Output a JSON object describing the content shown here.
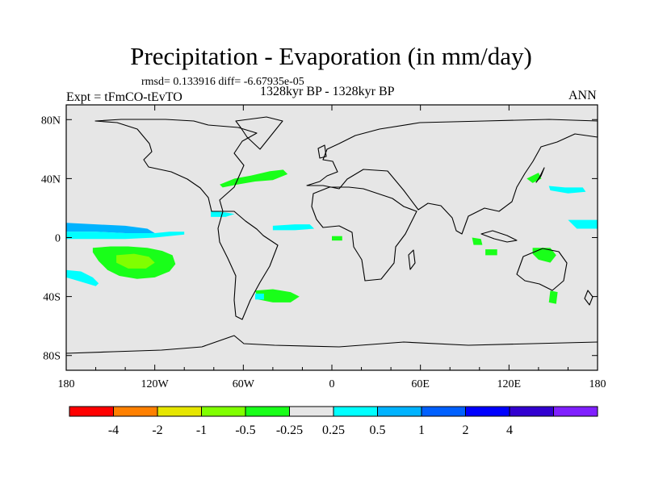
{
  "header": {
    "title": "Precipitation - Evaporation (in mm/day)",
    "stats": "rmsd= 0.133916 diff= -6.67935e-05",
    "experiment": "Expt = tFmCO-tEvTO",
    "period": "1328kyr BP - 1328kyr BP",
    "season": "ANN"
  },
  "chart_data": {
    "type": "heatmap",
    "title": "Precipitation - Evaporation (in mm/day)",
    "subtitle": "rmsd= 0.133916 diff= -6.67935e-05",
    "xlabel": "",
    "ylabel": "",
    "xlim": [
      -180,
      180
    ],
    "ylim": [
      -90,
      90
    ],
    "x_ticks": [
      {
        "value": -180,
        "label": "180"
      },
      {
        "value": -120,
        "label": "120W"
      },
      {
        "value": -60,
        "label": "60W"
      },
      {
        "value": 0,
        "label": "0"
      },
      {
        "value": 60,
        "label": "60E"
      },
      {
        "value": 120,
        "label": "120E"
      },
      {
        "value": 180,
        "label": "180"
      }
    ],
    "y_ticks": [
      {
        "value": 80,
        "label": "80N"
      },
      {
        "value": 40,
        "label": "40N"
      },
      {
        "value": 0,
        "label": "0"
      },
      {
        "value": -40,
        "label": "40S"
      },
      {
        "value": -80,
        "label": "80S"
      }
    ],
    "colorbar": {
      "colors": [
        "#ff0000",
        "#ff8000",
        "#e6e600",
        "#80ff00",
        "#19ff19",
        "#e6e6e6",
        "#00ffff",
        "#00b3ff",
        "#0060ff",
        "#0000ff",
        "#3200d0",
        "#8020ff"
      ],
      "labels": [
        "-4",
        "-2",
        "-1",
        "-0.5",
        "-0.25",
        "0.25",
        "0.5",
        "1",
        "2",
        "4"
      ],
      "background": "#e6e6e6"
    },
    "regions": [
      {
        "name": "north-atlantic-anomaly",
        "class": "-0.5..-0.25",
        "color": "#19ff19",
        "points": [
          [
            -76,
            36
          ],
          [
            -66,
            40
          ],
          [
            -55,
            42
          ],
          [
            -42,
            45
          ],
          [
            -33,
            46
          ],
          [
            -30,
            43
          ],
          [
            -40,
            39
          ],
          [
            -52,
            38
          ],
          [
            -64,
            36
          ],
          [
            -74,
            34
          ]
        ]
      },
      {
        "name": "south-pacific-anomaly",
        "class": "-0.5..-0.25",
        "color": "#19ff19",
        "points": [
          [
            -162,
            -7
          ],
          [
            -150,
            -6
          ],
          [
            -138,
            -6
          ],
          [
            -125,
            -7
          ],
          [
            -115,
            -9
          ],
          [
            -108,
            -12
          ],
          [
            -106,
            -18
          ],
          [
            -110,
            -23
          ],
          [
            -120,
            -27
          ],
          [
            -132,
            -28
          ],
          [
            -144,
            -26
          ],
          [
            -152,
            -22
          ],
          [
            -158,
            -16
          ],
          [
            -162,
            -10
          ]
        ]
      },
      {
        "name": "south-pacific-core",
        "class": "-1..-0.5",
        "color": "#80ff00",
        "points": [
          [
            -146,
            -12
          ],
          [
            -134,
            -11
          ],
          [
            -124,
            -13
          ],
          [
            -120,
            -17
          ],
          [
            -126,
            -21
          ],
          [
            -138,
            -21
          ],
          [
            -146,
            -17
          ]
        ]
      },
      {
        "name": "equatorial-pacific-positive",
        "class": "0.5..1",
        "color": "#00b3ff",
        "points": [
          [
            -180,
            10
          ],
          [
            -160,
            9
          ],
          [
            -140,
            8
          ],
          [
            -125,
            6
          ],
          [
            -120,
            3
          ],
          [
            -140,
            3
          ],
          [
            -160,
            4
          ],
          [
            -180,
            4
          ]
        ]
      },
      {
        "name": "equatorial-pacific-positive-band",
        "class": "0.25..0.5",
        "color": "#00ffff",
        "points": [
          [
            -180,
            4
          ],
          [
            -160,
            4
          ],
          [
            -140,
            3
          ],
          [
            -120,
            3
          ],
          [
            -110,
            4
          ],
          [
            -100,
            4
          ],
          [
            -100,
            2
          ],
          [
            -120,
            0
          ],
          [
            -140,
            -1
          ],
          [
            -160,
            -1
          ],
          [
            -180,
            -1
          ]
        ]
      },
      {
        "name": "atlantic-itcz-positive",
        "class": "0.25..0.5",
        "color": "#00ffff",
        "points": [
          [
            -40,
            8
          ],
          [
            -25,
            9
          ],
          [
            -15,
            9
          ],
          [
            -12,
            6
          ],
          [
            -25,
            5
          ],
          [
            -40,
            5
          ]
        ]
      },
      {
        "name": "south-pacific-positive",
        "class": "0.25..0.5",
        "color": "#00ffff",
        "points": [
          [
            -180,
            -22
          ],
          [
            -170,
            -23
          ],
          [
            -162,
            -27
          ],
          [
            -158,
            -31
          ],
          [
            -160,
            -33
          ],
          [
            -170,
            -30
          ],
          [
            -180,
            -27
          ]
        ]
      },
      {
        "name": "south-atlantic-anomaly",
        "class": "-0.5..-0.25",
        "color": "#19ff19",
        "points": [
          [
            -52,
            -36
          ],
          [
            -40,
            -35
          ],
          [
            -28,
            -37
          ],
          [
            -22,
            -40
          ],
          [
            -28,
            -44
          ],
          [
            -40,
            -44
          ],
          [
            -50,
            -42
          ]
        ]
      },
      {
        "name": "kuroshio-positive",
        "class": "0.25..0.5",
        "color": "#00ffff",
        "points": [
          [
            147,
            35
          ],
          [
            158,
            34
          ],
          [
            170,
            34
          ],
          [
            172,
            31
          ],
          [
            160,
            30
          ],
          [
            148,
            32
          ]
        ]
      },
      {
        "name": "indonesia-anomaly",
        "class": "-0.5..-0.25",
        "color": "#19ff19",
        "points": [
          [
            95,
            0
          ],
          [
            101,
            -1
          ],
          [
            102,
            -5
          ],
          [
            96,
            -5
          ]
        ]
      },
      {
        "name": "south-asia-anomaly",
        "class": "-0.5..-0.25",
        "color": "#19ff19",
        "points": [
          [
            104,
            -8
          ],
          [
            112,
            -8
          ],
          [
            112,
            -12
          ],
          [
            104,
            -12
          ]
        ]
      },
      {
        "name": "australia-coast-anomaly",
        "class": "-0.5..-0.25",
        "color": "#19ff19",
        "points": [
          [
            136,
            -7
          ],
          [
            148,
            -7
          ],
          [
            152,
            -12
          ],
          [
            148,
            -17
          ],
          [
            140,
            -15
          ],
          [
            136,
            -11
          ]
        ]
      },
      {
        "name": "west-pacific-positive",
        "class": "0.25..0.5",
        "color": "#00ffff",
        "points": [
          [
            160,
            12
          ],
          [
            180,
            12
          ],
          [
            180,
            6
          ],
          [
            166,
            6
          ]
        ]
      },
      {
        "name": "tasman-anomaly",
        "class": "-0.5..-0.25",
        "color": "#19ff19",
        "points": [
          [
            148,
            -36
          ],
          [
            153,
            -37
          ],
          [
            152,
            -45
          ],
          [
            147,
            -44
          ]
        ]
      },
      {
        "name": "gulf-of-guinea-anomaly",
        "class": "-0.5..-0.25",
        "color": "#19ff19",
        "points": [
          [
            0,
            1
          ],
          [
            7,
            1
          ],
          [
            7,
            -2
          ],
          [
            0,
            -2
          ]
        ]
      },
      {
        "name": "japan-anomaly",
        "class": "-0.5..-0.25",
        "color": "#19ff19",
        "points": [
          [
            132,
            40
          ],
          [
            140,
            44
          ],
          [
            142,
            40
          ],
          [
            136,
            37
          ]
        ]
      },
      {
        "name": "caribbean-positive",
        "class": "0.25..0.5",
        "color": "#00ffff",
        "points": [
          [
            -82,
            18
          ],
          [
            -72,
            17
          ],
          [
            -66,
            16
          ],
          [
            -72,
            14
          ],
          [
            -82,
            14
          ]
        ]
      },
      {
        "name": "patagonia-positive",
        "class": "0.25..0.5",
        "color": "#00ffff",
        "points": [
          [
            -52,
            -38
          ],
          [
            -46,
            -38
          ],
          [
            -46,
            -42
          ],
          [
            -52,
            -42
          ]
        ]
      }
    ]
  }
}
